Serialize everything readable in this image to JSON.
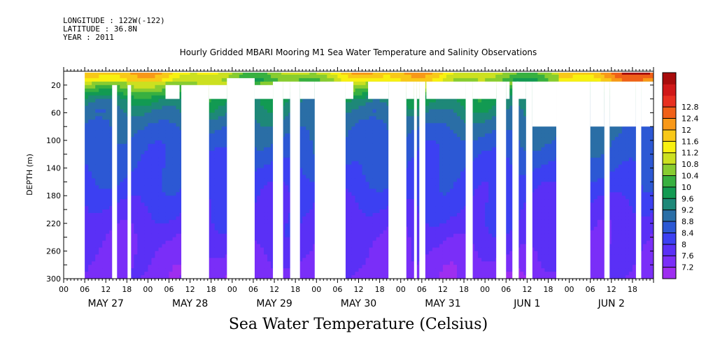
{
  "header": {
    "longitude": "LONGITUDE : 122W(-122)",
    "latitude": "LATITUDE : 36.8N",
    "year": "YEAR : 2011"
  },
  "title": "Hourly Gridded MBARI Mooring M1 Sea Water Temperature and Salinity Observations",
  "bottom_title": "Sea Water Temperature (Celsius)",
  "chart_data": {
    "type": "heatmap",
    "title": "Hourly Gridded MBARI Mooring M1 Sea Water Temperature and Salinity Observations",
    "ylabel": "DEPTH (m)",
    "colorbar_label": "Sea Water Temperature (Celsius)",
    "x_start": "MAY 27 2011 00:00",
    "x_end": "JUN 2 2011 24:00",
    "hour_ticks": [
      "00",
      "06",
      "12",
      "18",
      "00",
      "06",
      "12",
      "18",
      "00",
      "06",
      "12",
      "18",
      "00",
      "06",
      "12",
      "18",
      "00",
      "06",
      "12",
      "18",
      "00",
      "06",
      "12",
      "18",
      "00",
      "06",
      "12",
      "18"
    ],
    "day_labels": [
      "MAY 27",
      "MAY 28",
      "MAY 29",
      "MAY 30",
      "MAY 31",
      "JUN  1",
      "JUN  2"
    ],
    "y_ticks": [
      20,
      60,
      100,
      140,
      180,
      220,
      260,
      300
    ],
    "ylim": [
      300,
      0
    ],
    "colorbar_levels": [
      "7.2",
      "7.6",
      "8",
      "8.4",
      "8.8",
      "9.2",
      "9.6",
      "10",
      "10.4",
      "10.8",
      "11.2",
      "11.6",
      "12",
      "12.4",
      "12.8"
    ],
    "colors": [
      "#9e2ef0",
      "#7a2ef8",
      "#5a30f6",
      "#3c40f2",
      "#2c58d4",
      "#2a6ea6",
      "#1e8878",
      "#129a52",
      "#38b040",
      "#88cc30",
      "#cce020",
      "#f8f010",
      "#f8c818",
      "#f89818",
      "#f06018",
      "#e83020",
      "#d01818",
      "#a80c0c"
    ],
    "depth_profile": [
      {
        "depth": 0,
        "temp": 11.4
      },
      {
        "depth": 20,
        "temp": 10.6
      },
      {
        "depth": 40,
        "temp": 9.6
      },
      {
        "depth": 60,
        "temp": 9.2
      },
      {
        "depth": 80,
        "temp": 8.9
      },
      {
        "depth": 100,
        "temp": 8.7
      },
      {
        "depth": 140,
        "temp": 8.4
      },
      {
        "depth": 180,
        "temp": 8.1
      },
      {
        "depth": 220,
        "temp": 7.85
      },
      {
        "depth": 260,
        "temp": 7.6
      },
      {
        "depth": 300,
        "temp": 7.35
      }
    ],
    "missing_blocks": [
      {
        "t0": 0,
        "t1": 6,
        "d0": 0,
        "d1": 300
      },
      {
        "t0": 6,
        "t1": 174,
        "d0": 0,
        "d1": 2
      },
      {
        "t0": 13.8,
        "t1": 15.2,
        "d0": 20,
        "d1": 300
      },
      {
        "t0": 18.2,
        "t1": 19.2,
        "d0": 20,
        "d1": 300
      },
      {
        "t0": 29,
        "t1": 33,
        "d0": 20,
        "d1": 40
      },
      {
        "t0": 33.5,
        "t1": 41.4,
        "d0": 20,
        "d1": 300
      },
      {
        "t0": 41.4,
        "t1": 46.5,
        "d0": 20,
        "d1": 40
      },
      {
        "t0": 46.5,
        "t1": 54.4,
        "d0": 10,
        "d1": 300
      },
      {
        "t0": 54.4,
        "t1": 59.6,
        "d0": 20,
        "d1": 40
      },
      {
        "t0": 59.6,
        "t1": 62.5,
        "d0": 15,
        "d1": 300
      },
      {
        "t0": 62.5,
        "t1": 64.5,
        "d0": 15,
        "d1": 40
      },
      {
        "t0": 64.5,
        "t1": 67.3,
        "d0": 15,
        "d1": 300
      },
      {
        "t0": 67.3,
        "t1": 71.5,
        "d0": 15,
        "d1": 40
      },
      {
        "t0": 71.5,
        "t1": 80.3,
        "d0": 15,
        "d1": 300
      },
      {
        "t0": 80.3,
        "t1": 82.5,
        "d0": 15,
        "d1": 40
      },
      {
        "t0": 86.7,
        "t1": 92.5,
        "d0": 15,
        "d1": 40
      },
      {
        "t0": 92.5,
        "t1": 97.6,
        "d0": 15,
        "d1": 300
      },
      {
        "t0": 97.6,
        "t1": 99.8,
        "d0": 15,
        "d1": 40
      },
      {
        "t0": 99.8,
        "t1": 100.6,
        "d0": 15,
        "d1": 300
      },
      {
        "t0": 100.6,
        "t1": 101.3,
        "d0": 15,
        "d1": 40
      },
      {
        "t0": 101.3,
        "t1": 103.0,
        "d0": 15,
        "d1": 300
      },
      {
        "t0": 103.3,
        "t1": 114.5,
        "d0": 15,
        "d1": 40
      },
      {
        "t0": 114.5,
        "t1": 116.5,
        "d0": 15,
        "d1": 300
      },
      {
        "t0": 116.5,
        "t1": 123.2,
        "d0": 15,
        "d1": 40
      },
      {
        "t0": 123.2,
        "t1": 126.0,
        "d0": 15,
        "d1": 300
      },
      {
        "t0": 126.0,
        "t1": 127.0,
        "d0": 15,
        "d1": 40
      },
      {
        "t0": 127.8,
        "t1": 129.6,
        "d0": 15,
        "d1": 300
      },
      {
        "t0": 129.0,
        "t1": 131.7,
        "d0": 15,
        "d1": 40
      },
      {
        "t0": 131.7,
        "t1": 133.5,
        "d0": 15,
        "d1": 300
      },
      {
        "t0": 133.5,
        "t1": 140.3,
        "d0": 15,
        "d1": 80
      },
      {
        "t0": 140.3,
        "t1": 150.0,
        "d0": 15,
        "d1": 300
      },
      {
        "t0": 150.0,
        "t1": 154.0,
        "d0": 15,
        "d1": 80
      },
      {
        "t0": 154.0,
        "t1": 155.5,
        "d0": 15,
        "d1": 300
      },
      {
        "t0": 155.5,
        "t1": 163.0,
        "d0": 15,
        "d1": 80
      },
      {
        "t0": 163.0,
        "t1": 164.5,
        "d0": 15,
        "d1": 300
      },
      {
        "t0": 164.5,
        "t1": 170.0,
        "d0": 15,
        "d1": 80
      },
      {
        "t0": 170.0,
        "t1": 171.0,
        "d0": 15,
        "d1": 300
      },
      {
        "t0": 171.0,
        "t1": 173.5,
        "d0": 15,
        "d1": 80
      }
    ]
  }
}
